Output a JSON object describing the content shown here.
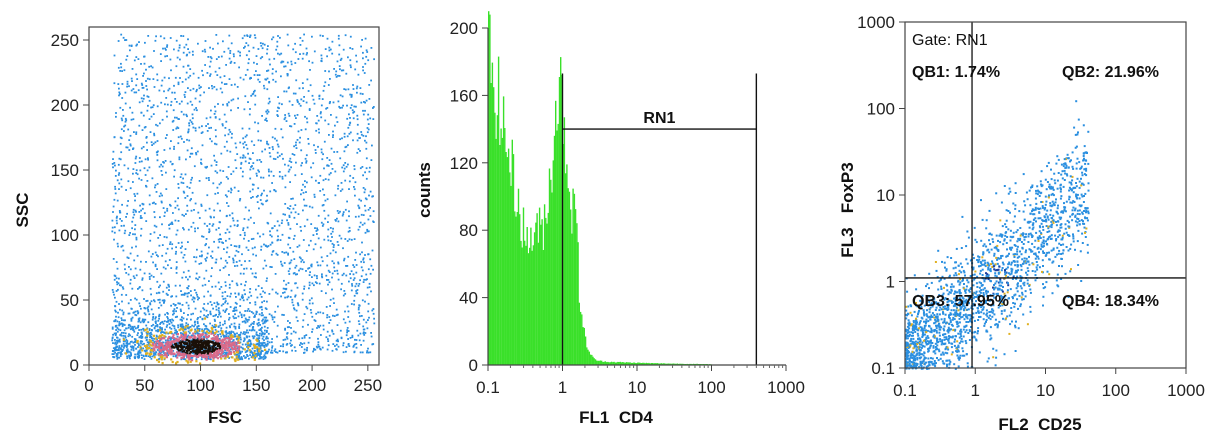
{
  "chart_data": [
    {
      "type": "scatter",
      "xlabel": "FSC",
      "ylabel": "SSC",
      "xlim": [
        0,
        260
      ],
      "ylim": [
        0,
        260
      ],
      "xticks": [
        0,
        50,
        100,
        150,
        200,
        250
      ],
      "yticks": [
        0,
        50,
        100,
        150,
        200,
        250
      ],
      "density": "heat",
      "colors": {
        "low": "#2a8fe0",
        "mid": "#d86a8a",
        "high": "#1a1008"
      },
      "population": {
        "center": [
          95,
          15
        ],
        "spread": [
          22,
          6
        ],
        "dense_range_x": [
          20,
          160
        ]
      }
    },
    {
      "type": "bar",
      "subtype": "histogram",
      "xlabel": "FL1  CD4",
      "ylabel": "counts",
      "xscale": "log",
      "xlim": [
        0.1,
        1000
      ],
      "ylim": [
        0,
        200
      ],
      "xticks": [
        0.1,
        1,
        10,
        100,
        1000
      ],
      "xticklabels": [
        "0.1",
        "1",
        "10",
        "100",
        "1000"
      ],
      "yticks": [
        0,
        40,
        80,
        120,
        160,
        200
      ],
      "color": "#3ae02a",
      "peak": {
        "x": 0.9,
        "y": 168
      },
      "gate": {
        "label": "RN1",
        "x_start": 1,
        "x_end": 400,
        "y": 140,
        "marker_height": 173
      }
    },
    {
      "type": "scatter",
      "xlabel": "FL2  CD25",
      "ylabel": "FL3   FoxP3",
      "xscale": "log",
      "yscale": "log",
      "xlim": [
        0.1,
        1000
      ],
      "ylim": [
        0.1,
        1000
      ],
      "xticks": [
        0.1,
        1,
        10,
        100,
        1000
      ],
      "xticklabels": [
        "0.1",
        "1",
        "10",
        "100",
        "1000"
      ],
      "yticks": [
        0.1,
        1,
        10,
        100,
        1000
      ],
      "yticklabels": [
        "0.1",
        "1",
        "10",
        "100",
        "1000"
      ],
      "color": "#2a8fe0",
      "gate_label": "Gate: RN1",
      "quadrant_split": {
        "x": 0.9,
        "y": 1.1
      },
      "quadrants": [
        {
          "name": "QB1",
          "value": "1.74%",
          "text": "QB1: 1.74%"
        },
        {
          "name": "QB2",
          "value": "21.96%",
          "text": "QB2: 21.96%"
        },
        {
          "name": "QB3",
          "value": "57.95%",
          "text": "QB3: 57.95%"
        },
        {
          "name": "QB4",
          "value": "18.34%",
          "text": "QB4: 18.34%"
        }
      ]
    }
  ]
}
